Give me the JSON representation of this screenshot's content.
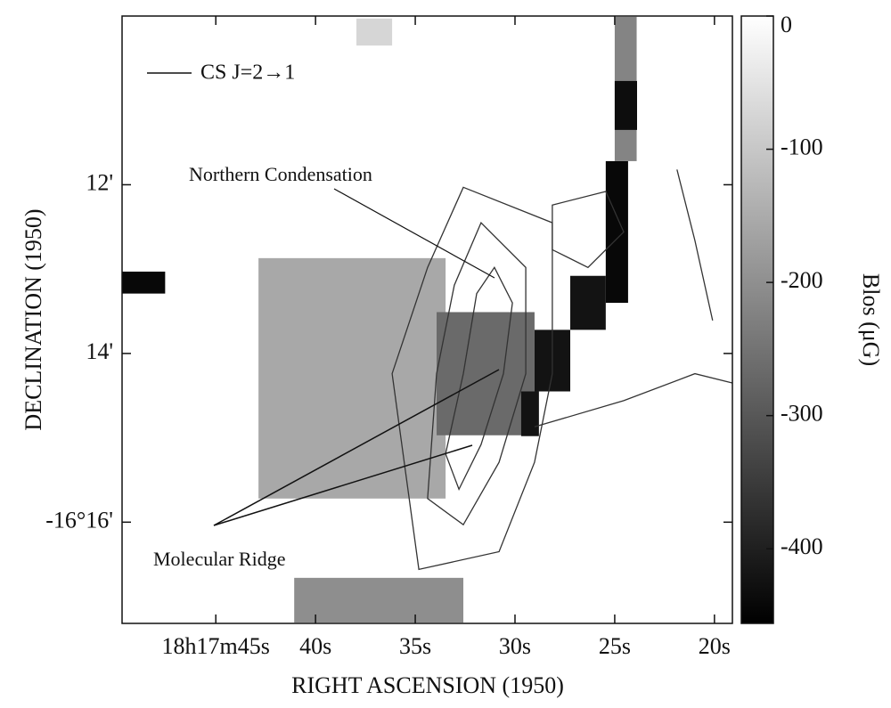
{
  "chart_data": {
    "type": "map",
    "xlabel": "RIGHT ASCENSION (1950)",
    "ylabel": "DECLINATION (1950)",
    "colorbar_label": "Blos (μG)",
    "legend_label": "CS J=2→1",
    "annotations": [
      "Northern Condensation",
      "Molecular Ridge"
    ],
    "xlim": [
      49.7,
      19.1
    ],
    "xticks": [
      {
        "value": 45,
        "label": "18h17m45s"
      },
      {
        "value": 40,
        "label": "40s"
      },
      {
        "value": 35,
        "label": "35s"
      },
      {
        "value": 30,
        "label": "30s"
      },
      {
        "value": 25,
        "label": "25s"
      },
      {
        "value": 20,
        "label": "20s"
      }
    ],
    "ylim": [
      17.2,
      10.0
    ],
    "yticks": [
      {
        "value": 12,
        "label": "12'"
      },
      {
        "value": 14,
        "label": "14'"
      },
      {
        "value": 16,
        "label": "-16°16'"
      }
    ],
    "clim": [
      -456,
      0
    ],
    "cticks": [
      0,
      -100,
      -200,
      -300,
      -400
    ],
    "blocks": [
      [
        42.86,
        33.48,
        12.87,
        15.72,
        -130
      ],
      [
        33.93,
        29.02,
        13.51,
        14.97,
        -250
      ],
      [
        25.45,
        24.33,
        11.72,
        13.4,
        -440
      ],
      [
        27.23,
        25.45,
        13.08,
        13.72,
        -420
      ],
      [
        29.02,
        27.23,
        13.72,
        14.45,
        -420
      ],
      [
        29.69,
        28.8,
        14.45,
        14.98,
        -420
      ],
      [
        49.69,
        47.54,
        13.03,
        13.29,
        -440
      ],
      [
        25.0,
        23.9,
        10.01,
        11.72,
        -200
      ],
      [
        37.95,
        36.16,
        10.03,
        10.35,
        -40
      ],
      [
        41.07,
        32.59,
        16.66,
        17.19,
        -180
      ],
      [
        25.0,
        23.88,
        10.77,
        11.35,
        -430
      ]
    ],
    "contours": [
      {
        "x": [
          31.03,
          30.13,
          30.58,
          31.7,
          32.81,
          33.48,
          32.59,
          31.92
        ],
        "y": [
          12.98,
          13.4,
          14.24,
          15.08,
          15.61,
          15.19,
          14.24,
          13.29
        ],
        "closed": true
      },
      {
        "x": [
          31.7,
          29.46,
          29.46,
          30.8,
          32.59,
          34.38,
          33.93,
          33.04
        ],
        "y": [
          12.45,
          12.98,
          14.24,
          15.29,
          16.03,
          15.72,
          14.24,
          13.19
        ],
        "closed": true
      },
      {
        "x": [
          32.59,
          28.13,
          28.13,
          29.02,
          30.8,
          34.82,
          36.16,
          34.38
        ],
        "y": [
          12.03,
          12.45,
          14.24,
          15.29,
          16.35,
          16.56,
          14.24,
          12.98
        ],
        "closed": true
      },
      {
        "x": [
          28.13,
          25.45,
          24.55,
          26.34,
          28.13
        ],
        "y": [
          12.24,
          12.08,
          12.56,
          12.98,
          12.77
        ],
        "closed": true
      },
      {
        "x": [
          29.02,
          24.55,
          20.98,
          19.11
        ],
        "y": [
          14.87,
          14.56,
          14.24,
          14.35
        ],
        "closed": false
      },
      {
        "x": [
          21.88,
          20.98,
          20.09
        ],
        "y": [
          11.82,
          12.66,
          13.61
        ],
        "closed": false
      }
    ]
  }
}
